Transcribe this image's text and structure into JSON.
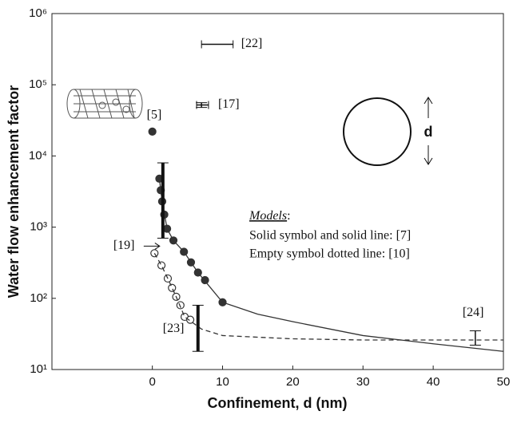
{
  "chart_data": {
    "type": "scatter",
    "xlabel": "Confinement, d (nm)",
    "ylabel": "Water flow enhancement factor",
    "xlim": [
      -14.3,
      50
    ],
    "ylim": [
      10,
      1000000
    ],
    "log_y": true,
    "xticks": [
      0,
      10,
      20,
      30,
      40,
      50
    ],
    "yticks": [
      {
        "value": 10,
        "label": "10¹"
      },
      {
        "value": 100,
        "label": "10²"
      },
      {
        "value": 1000,
        "label": "10³"
      },
      {
        "value": 10000,
        "label": "10⁴"
      },
      {
        "value": 100000,
        "label": "10⁵"
      },
      {
        "value": 1000000,
        "label": "10⁶"
      }
    ],
    "series": [
      {
        "style": "filled",
        "color": "#333333",
        "x": [
          1,
          1.2,
          1.4,
          1.7,
          2.1,
          3,
          4.5,
          5.5,
          6.5,
          7.5,
          10
        ],
        "values": [
          4800,
          3300,
          2300,
          1500,
          950,
          650,
          450,
          320,
          230,
          180,
          88
        ]
      },
      {
        "style": "empty",
        "color": "#333333",
        "x": [
          0.3,
          1.3,
          2.2,
          2.8,
          3.4,
          4.0,
          4.6,
          5.4
        ],
        "values": [
          430,
          290,
          190,
          140,
          105,
          80,
          55,
          50
        ]
      },
      {
        "style": "solid-line",
        "color": "#333333",
        "x": [
          1,
          1.4,
          2.1,
          3,
          4.5,
          6.5,
          10,
          15,
          20,
          30,
          40,
          50
        ],
        "values": [
          4800,
          2300,
          950,
          650,
          450,
          230,
          88,
          60,
          47,
          30,
          23,
          18
        ]
      },
      {
        "style": "dashed-line",
        "color": "#333333",
        "x": [
          0.3,
          1.3,
          2.2,
          3.4,
          4.6,
          7,
          10,
          20,
          30,
          40,
          50
        ],
        "values": [
          430,
          290,
          190,
          105,
          55,
          37,
          30,
          27,
          26,
          26,
          26
        ]
      },
      {
        "style": "filled",
        "color": "#333333",
        "label": "[5]",
        "x": [
          0
        ],
        "values": [
          22000
        ]
      }
    ],
    "error_bars": [
      {
        "label": "[19]",
        "x": 1.5,
        "low": 700,
        "high": 8000
      },
      {
        "label": "[23]",
        "x": 6.5,
        "low": 18,
        "high": 80
      },
      {
        "label": "[24]",
        "x": 46,
        "low": 22,
        "high": 35
      },
      {
        "label": "[17]",
        "x": 7,
        "low": 48000,
        "high": 56000,
        "xlow": 6.3,
        "xhigh": 8,
        "y": 52000
      },
      {
        "label": "[22]",
        "xlow": 7,
        "xhigh": 11.5,
        "y": 370000
      }
    ],
    "models_title": "Models",
    "models_colon": ":",
    "models_lines": [
      "Solid symbol and solid line: [7]",
      "Empty symbol dotted line: [10]"
    ],
    "d_label": "d"
  }
}
